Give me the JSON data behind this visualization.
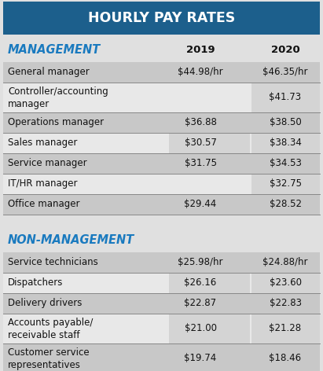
{
  "title": "HOURLY PAY RATES",
  "title_bg": "#1c5f8c",
  "title_color": "#ffffff",
  "section_management": "MANAGEMENT",
  "section_nonmanagement": "NON-MANAGEMENT",
  "section_color": "#1a7abf",
  "col_headers": [
    "2019",
    "2020"
  ],
  "management_rows": [
    {
      "label": "General manager",
      "v2019": "$44.98/hr",
      "v2020": "$46.35/hr",
      "shade": true
    },
    {
      "label": "Controller/accounting\nmanager",
      "v2019": "",
      "v2020": "$41.73",
      "shade": false
    },
    {
      "label": "Operations manager",
      "v2019": "$36.88",
      "v2020": "$38.50",
      "shade": true
    },
    {
      "label": "Sales manager",
      "v2019": "$30.57",
      "v2020": "$38.34",
      "shade": false
    },
    {
      "label": "Service manager",
      "v2019": "$31.75",
      "v2020": "$34.53",
      "shade": true
    },
    {
      "label": "IT/HR manager",
      "v2019": "",
      "v2020": "$32.75",
      "shade": false
    },
    {
      "label": "Office manager",
      "v2019": "$29.44",
      "v2020": "$28.52",
      "shade": true
    }
  ],
  "nonmanagement_rows": [
    {
      "label": "Service technicians",
      "v2019": "$25.98/hr",
      "v2020": "$24.88/hr",
      "shade": true
    },
    {
      "label": "Dispatchers",
      "v2019": "$26.16",
      "v2020": "$23.60",
      "shade": false
    },
    {
      "label": "Delivery drivers",
      "v2019": "$22.87",
      "v2020": "$22.83",
      "shade": true
    },
    {
      "label": "Accounts payable/\nreceivable staff",
      "v2019": "$21.00",
      "v2020": "$21.28",
      "shade": false
    },
    {
      "label": "Customer service\nrepresentatives",
      "v2019": "$19.74",
      "v2020": "$18.46",
      "shade": true
    }
  ],
  "shade_color": "#c8c8c8",
  "white_color": "#e8e8e8",
  "bg_color": "#e0e0e0",
  "divider_color": "#888888",
  "text_color": "#111111",
  "header_text_color": "#111111",
  "body_fontsize": 8.5,
  "header_fontsize": 9.5,
  "section_fontsize": 10.5,
  "title_fontsize": 12.5
}
